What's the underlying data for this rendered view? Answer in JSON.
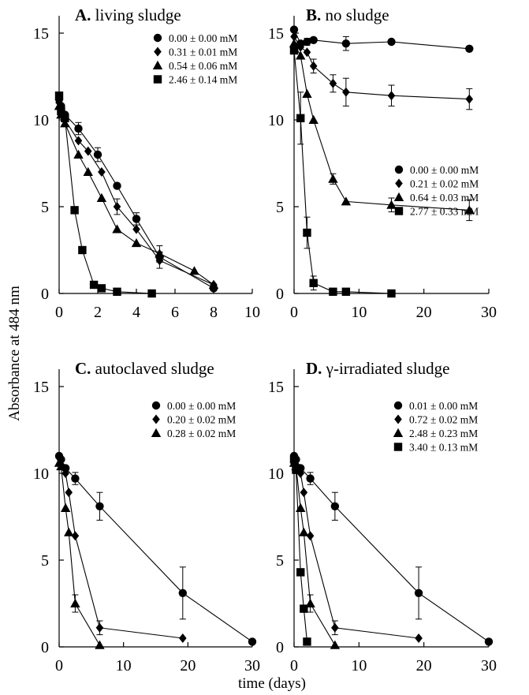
{
  "chart_data": [
    {
      "type": "line",
      "title_letter": "A.",
      "title_text": "living sludge",
      "xlim": [
        0,
        10
      ],
      "ylim": [
        0,
        16
      ],
      "xticks": [
        0,
        2,
        4,
        6,
        8,
        10
      ],
      "yticks": [
        0,
        5,
        10,
        15
      ],
      "legend_position": "top-right",
      "series": [
        {
          "name": "0.00 ± 0.00 mM",
          "marker": "circle",
          "x": [
            0,
            0.1,
            0.3,
            1,
            2,
            3,
            4,
            5.2,
            8
          ],
          "y": [
            11.2,
            10.8,
            10.3,
            9.5,
            8.0,
            6.2,
            4.3,
            2.1,
            0.3
          ],
          "err": [
            0,
            0,
            0,
            0.35,
            0.4,
            0,
            0.35,
            0.3,
            0
          ]
        },
        {
          "name": "0.31 ± 0.01 mM",
          "marker": "diamond",
          "x": [
            0,
            0.1,
            0.3,
            1,
            1.5,
            2.2,
            3,
            4,
            5.2,
            8
          ],
          "y": [
            11.0,
            10.6,
            10.0,
            8.8,
            8.2,
            7.0,
            5.0,
            3.7,
            1.9,
            0.5
          ],
          "err": [
            0,
            0,
            0,
            0,
            0,
            0,
            0.45,
            0,
            0.45,
            0
          ]
        },
        {
          "name": "0.54 ± 0.06 mM",
          "marker": "triangle",
          "x": [
            0,
            0.1,
            0.3,
            1,
            1.5,
            2.2,
            3,
            4,
            5.2,
            7,
            8
          ],
          "y": [
            10.8,
            10.3,
            9.8,
            8.0,
            7.0,
            5.5,
            3.7,
            2.9,
            2.3,
            1.3,
            0.5
          ],
          "err": [
            0,
            0,
            0,
            0,
            0,
            0,
            0,
            0,
            0.45,
            0,
            0
          ]
        },
        {
          "name": "2.46 ± 0.14 mM",
          "marker": "square",
          "x": [
            0,
            0.1,
            0.3,
            0.8,
            1.2,
            1.8,
            2.2,
            3,
            4.8
          ],
          "y": [
            11.4,
            10.5,
            10.1,
            4.8,
            2.5,
            0.5,
            0.3,
            0.1,
            0.0
          ],
          "err": [
            0,
            0,
            0,
            0,
            0,
            0,
            0,
            0,
            0
          ]
        }
      ]
    },
    {
      "type": "line",
      "title_letter": "B.",
      "title_text": "no sludge",
      "xlim": [
        0,
        30
      ],
      "ylim": [
        0,
        16
      ],
      "xticks": [
        0,
        10,
        20,
        30
      ],
      "yticks": [
        0,
        5,
        10,
        15
      ],
      "legend_position": "center-right",
      "series": [
        {
          "name": "0.00 ± 0.00 mM",
          "marker": "circle",
          "x": [
            0,
            1,
            2,
            3,
            8,
            15,
            27
          ],
          "y": [
            15.2,
            14.4,
            14.5,
            14.6,
            14.4,
            14.5,
            14.1
          ],
          "err": [
            0,
            0,
            0.2,
            0,
            0.4,
            0,
            0
          ]
        },
        {
          "name": "0.21 ± 0.02 mM",
          "marker": "diamond",
          "x": [
            0,
            1,
            2,
            3,
            6,
            8,
            15,
            27
          ],
          "y": [
            14.8,
            14.2,
            13.9,
            13.1,
            12.1,
            11.6,
            11.4,
            11.2
          ],
          "err": [
            0,
            0,
            0,
            0.4,
            0.5,
            0.8,
            0.6,
            0.6
          ]
        },
        {
          "name": "0.64 ± 0.03 mM",
          "marker": "triangle",
          "x": [
            0,
            1,
            2,
            3,
            6,
            8,
            15,
            27
          ],
          "y": [
            14.4,
            13.7,
            11.5,
            10.0,
            6.6,
            5.3,
            5.1,
            4.8
          ],
          "err": [
            0,
            0,
            0,
            0,
            0.3,
            0,
            0.4,
            0.6
          ]
        },
        {
          "name": "2.77 ± 0.33 mM",
          "marker": "square",
          "x": [
            0,
            1,
            2,
            3,
            6,
            8,
            15
          ],
          "y": [
            14.0,
            10.1,
            3.5,
            0.6,
            0.1,
            0.1,
            0.0
          ],
          "err": [
            0,
            1.5,
            0.9,
            0.4,
            0,
            0,
            0
          ]
        }
      ]
    },
    {
      "type": "line",
      "title_letter": "C.",
      "title_text": "autoclaved sludge",
      "xlim": [
        0,
        30
      ],
      "ylim": [
        0,
        16
      ],
      "xticks": [
        0,
        10,
        20,
        30
      ],
      "yticks": [
        0,
        5,
        10,
        15
      ],
      "legend_position": "top-right",
      "series": [
        {
          "name": "0.00 ± 0.00 mM",
          "marker": "circle",
          "x": [
            0,
            0.3,
            1,
            2.5,
            6.3,
            19.2,
            30
          ],
          "y": [
            11.0,
            10.8,
            10.3,
            9.7,
            8.1,
            3.1,
            0.3
          ],
          "err": [
            0,
            0,
            0,
            0.35,
            0.8,
            1.5,
            0
          ]
        },
        {
          "name": "0.20 ± 0.02 mM",
          "marker": "diamond",
          "x": [
            0,
            0.3,
            1,
            1.5,
            2.5,
            6.3,
            19.2
          ],
          "y": [
            10.9,
            10.5,
            10.0,
            8.9,
            6.4,
            1.1,
            0.5
          ],
          "err": [
            0,
            0,
            0,
            0,
            0,
            0.4,
            0
          ]
        },
        {
          "name": "0.28 ± 0.02 mM",
          "marker": "triangle",
          "x": [
            0,
            0.3,
            1,
            1.5,
            2.5,
            6.3
          ],
          "y": [
            10.6,
            10.4,
            8.0,
            6.6,
            2.5,
            0.1
          ],
          "err": [
            0,
            0,
            0,
            0,
            0.5,
            0
          ]
        }
      ]
    },
    {
      "type": "line",
      "title_letter": "D.",
      "title_text": "γ-irradiated sludge",
      "xlim": [
        0,
        30
      ],
      "ylim": [
        0,
        16
      ],
      "xticks": [
        0,
        10,
        20,
        30
      ],
      "yticks": [
        0,
        5,
        10,
        15
      ],
      "legend_position": "top-right",
      "series": [
        {
          "name": "0.01 ± 0.00 mM",
          "marker": "circle",
          "x": [
            0,
            0.3,
            1,
            2.5,
            6.3,
            19.2,
            30
          ],
          "y": [
            11.0,
            10.8,
            10.3,
            9.7,
            8.1,
            3.1,
            0.3
          ],
          "err": [
            0,
            0,
            0,
            0.35,
            0.8,
            1.5,
            0
          ]
        },
        {
          "name": "0.72 ± 0.02 mM",
          "marker": "diamond",
          "x": [
            0,
            0.3,
            1,
            1.5,
            2.5,
            6.3,
            19.2
          ],
          "y": [
            10.9,
            10.5,
            10.0,
            8.9,
            6.4,
            1.1,
            0.5
          ],
          "err": [
            0,
            0,
            0,
            0,
            0,
            0.4,
            0
          ]
        },
        {
          "name": "2.48 ± 0.23 mM",
          "marker": "triangle",
          "x": [
            0,
            0.3,
            1,
            1.5,
            2.5,
            6.3
          ],
          "y": [
            10.6,
            10.4,
            8.0,
            6.6,
            2.5,
            0.1
          ],
          "err": [
            0,
            0,
            0,
            0,
            0.5,
            0
          ]
        },
        {
          "name": "3.40 ± 0.13 mM",
          "marker": "square",
          "x": [
            0,
            0.3,
            1,
            1.5,
            2
          ],
          "y": [
            10.8,
            10.2,
            4.3,
            2.2,
            0.3
          ],
          "err": [
            0,
            0,
            0,
            0,
            0
          ]
        }
      ]
    }
  ],
  "shared_labels": {
    "ylabel": "Absorbance at 484 nm",
    "xlabel": "time (days)"
  }
}
